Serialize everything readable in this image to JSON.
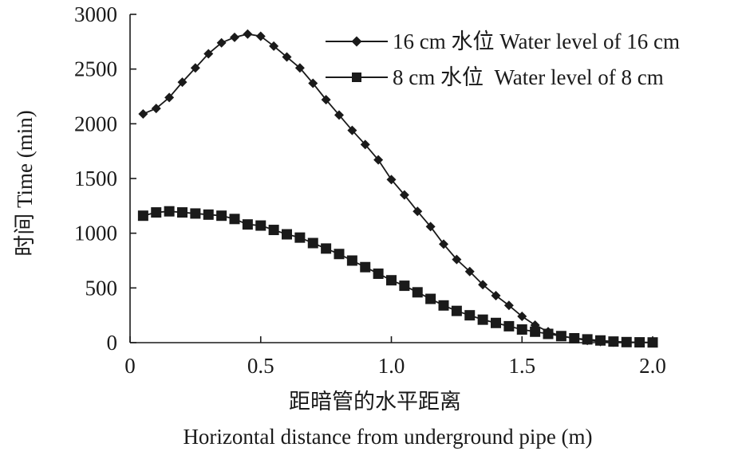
{
  "chart_data": {
    "type": "line",
    "xlabel": "距暗管的水平距离",
    "xlabel_en": "Horizontal distance from underground pipe (m)",
    "ylabel": "时间 Time (min)",
    "xlim": [
      0,
      2.0
    ],
    "ylim": [
      0,
      3000
    ],
    "xticks": [
      "0",
      "0.5",
      "1.0",
      "1.5",
      "2.0"
    ],
    "yticks": [
      "0",
      "500",
      "1000",
      "1500",
      "2000",
      "2500",
      "3000"
    ],
    "grid": false,
    "legend_position": "top-right",
    "x": [
      0.05,
      0.1,
      0.15,
      0.2,
      0.25,
      0.3,
      0.35,
      0.4,
      0.45,
      0.5,
      0.55,
      0.6,
      0.65,
      0.7,
      0.75,
      0.8,
      0.85,
      0.9,
      0.95,
      1.0,
      1.05,
      1.1,
      1.15,
      1.2,
      1.25,
      1.3,
      1.35,
      1.4,
      1.45,
      1.5,
      1.55,
      1.6,
      1.65,
      1.7,
      1.75,
      1.8,
      1.85,
      1.9,
      1.95,
      2.0
    ],
    "series": [
      {
        "name": "16 cm 水位 Water level of 16 cm",
        "marker": "diamond",
        "color": "#1a1a1a",
        "values": [
          2090,
          2140,
          2240,
          2380,
          2510,
          2640,
          2740,
          2790,
          2820,
          2800,
          2710,
          2610,
          2510,
          2370,
          2220,
          2080,
          1940,
          1810,
          1670,
          1490,
          1350,
          1200,
          1060,
          900,
          760,
          650,
          530,
          430,
          340,
          240,
          160,
          100,
          60,
          40,
          20,
          10,
          5,
          3,
          2,
          2
        ]
      },
      {
        "name": "8 cm 水位  Water level of 8 cm",
        "marker": "square",
        "color": "#1a1a1a",
        "values": [
          1160,
          1190,
          1200,
          1190,
          1180,
          1170,
          1160,
          1130,
          1080,
          1070,
          1030,
          990,
          960,
          910,
          860,
          810,
          750,
          690,
          630,
          570,
          520,
          460,
          400,
          340,
          290,
          250,
          210,
          180,
          150,
          120,
          100,
          80,
          60,
          40,
          30,
          20,
          10,
          5,
          3,
          2
        ]
      }
    ]
  }
}
